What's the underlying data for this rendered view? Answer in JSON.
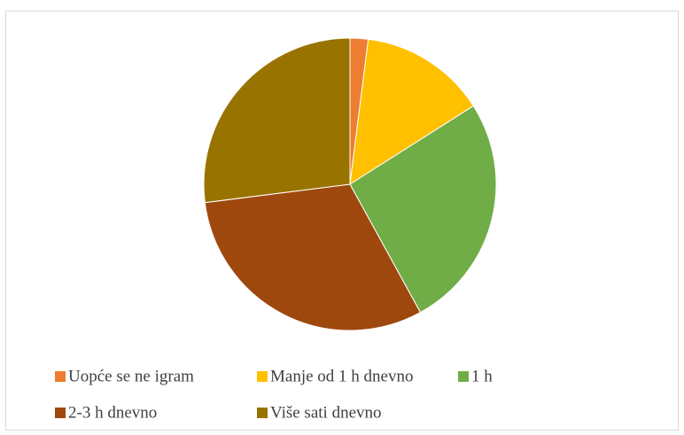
{
  "chart_data": {
    "type": "pie",
    "categories": [
      "Uopće se ne igram",
      "Manje od 1 h dnevno",
      "1 h",
      "2-3 h dnevno",
      "Više sati dnevno"
    ],
    "values": [
      2,
      14,
      26,
      31,
      27
    ],
    "colors": [
      "#ed7d31",
      "#ffc000",
      "#70ad47",
      "#9e480e",
      "#997300"
    ],
    "legend": "bottom"
  }
}
